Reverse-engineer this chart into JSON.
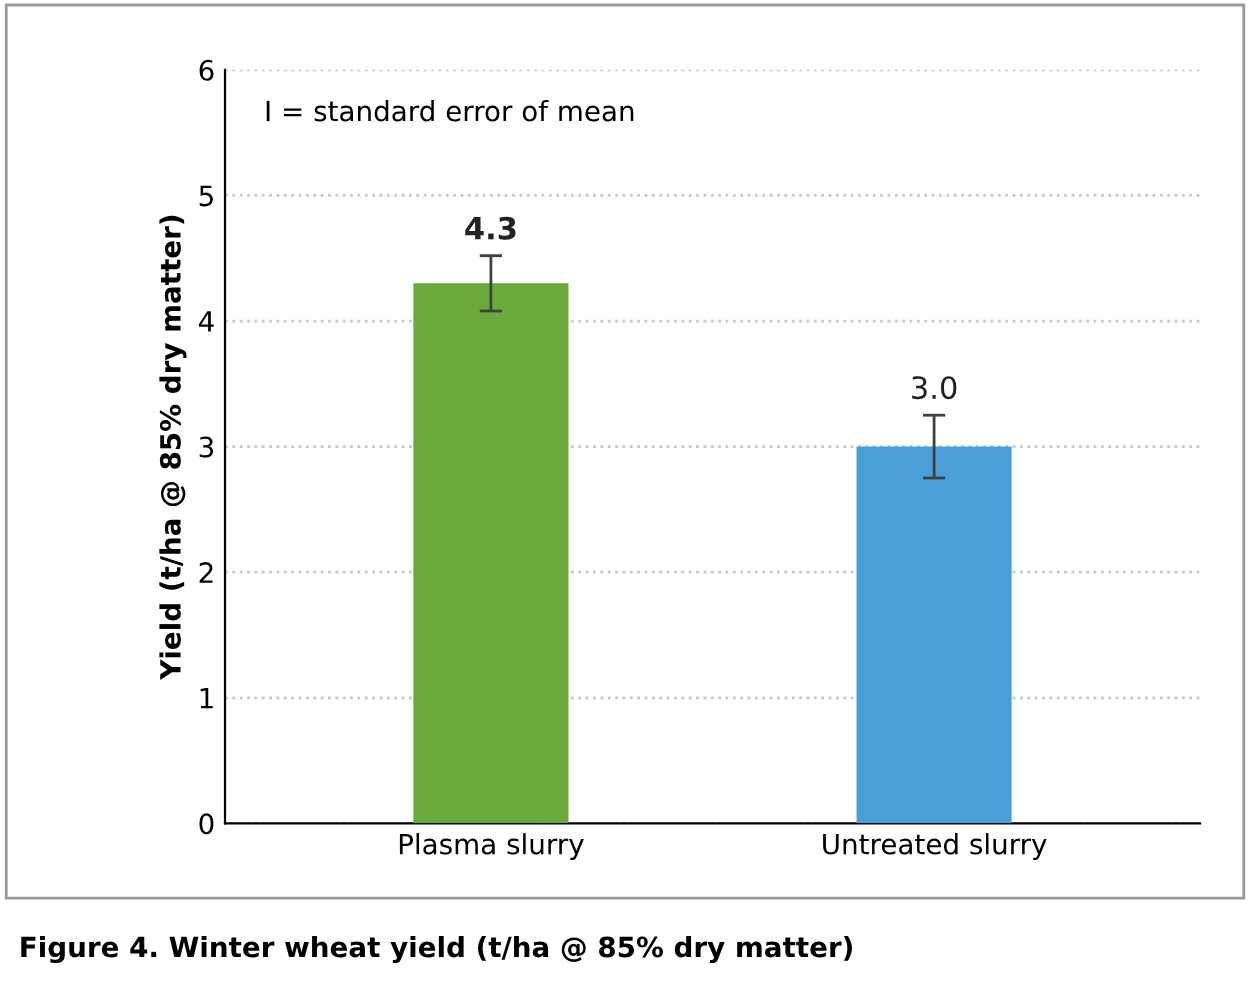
{
  "chart_data": {
    "type": "bar",
    "categories": [
      "Plasma slurry",
      "Untreated slurry"
    ],
    "values": [
      4.3,
      3.0
    ],
    "colors": [
      "#6aaa3a",
      "#4a9fd8"
    ],
    "errors": [
      0.22,
      0.25
    ],
    "value_labels": [
      "4.3",
      "3.0"
    ],
    "ylabel": "Yield (t/ha @ 85% dry matter)",
    "ylim": [
      0,
      6
    ],
    "yticks": [
      0,
      1,
      2,
      3,
      4,
      5,
      6
    ],
    "grid": "y",
    "annotations": [
      "I = standard error of mean",
      "Figure 4. Winter wheat yield (t/ha @ 85% dry matter)"
    ]
  }
}
